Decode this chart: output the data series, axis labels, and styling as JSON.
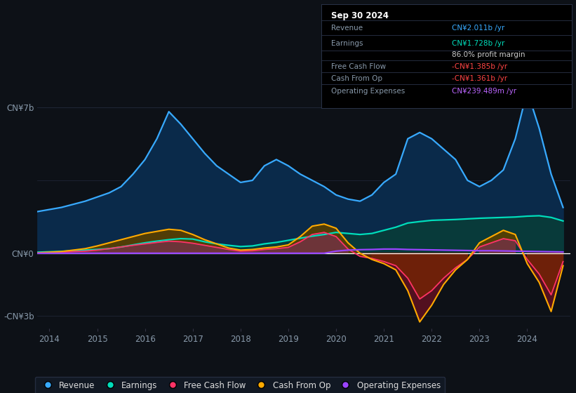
{
  "background_color": "#0d1117",
  "plot_bg_color": "#0d1117",
  "info_box": {
    "date": "Sep 30 2024",
    "rows": [
      {
        "label": "Revenue",
        "value": "CN¥2.011b /yr",
        "value_color": "#38aaff"
      },
      {
        "label": "Earnings",
        "value": "CN¥1.728b /yr",
        "value_color": "#00e5cc"
      },
      {
        "label": "",
        "value": "86.0% profit margin",
        "value_color": "#cccccc",
        "bold_part": "86.0%"
      },
      {
        "label": "Free Cash Flow",
        "value": "-CN¥1.385b /yr",
        "value_color": "#ff4444"
      },
      {
        "label": "Cash From Op",
        "value": "-CN¥1.361b /yr",
        "value_color": "#ff4444"
      },
      {
        "label": "Operating Expenses",
        "value": "CN¥239.489m /yr",
        "value_color": "#bb66ff"
      }
    ]
  },
  "colors": {
    "revenue": "#38aaff",
    "earnings": "#00ddbb",
    "free_cash_flow": "#ff3366",
    "cash_from_op": "#ffaa00",
    "operating_expenses": "#9944ff"
  },
  "fill_colors": {
    "revenue": "#0a2a4a",
    "earnings": "#083a3a",
    "fcf_positive": "#7a3050",
    "fcf_negative": "#5a1020",
    "cop_positive": "#5a4000",
    "cop_negative": "#7a2800"
  },
  "legend": [
    {
      "label": "Revenue",
      "color": "#38aaff"
    },
    {
      "label": "Earnings",
      "color": "#00ddbb"
    },
    {
      "label": "Free Cash Flow",
      "color": "#ff3366"
    },
    {
      "label": "Cash From Op",
      "color": "#ffaa00"
    },
    {
      "label": "Operating Expenses",
      "color": "#9944ff"
    }
  ]
}
